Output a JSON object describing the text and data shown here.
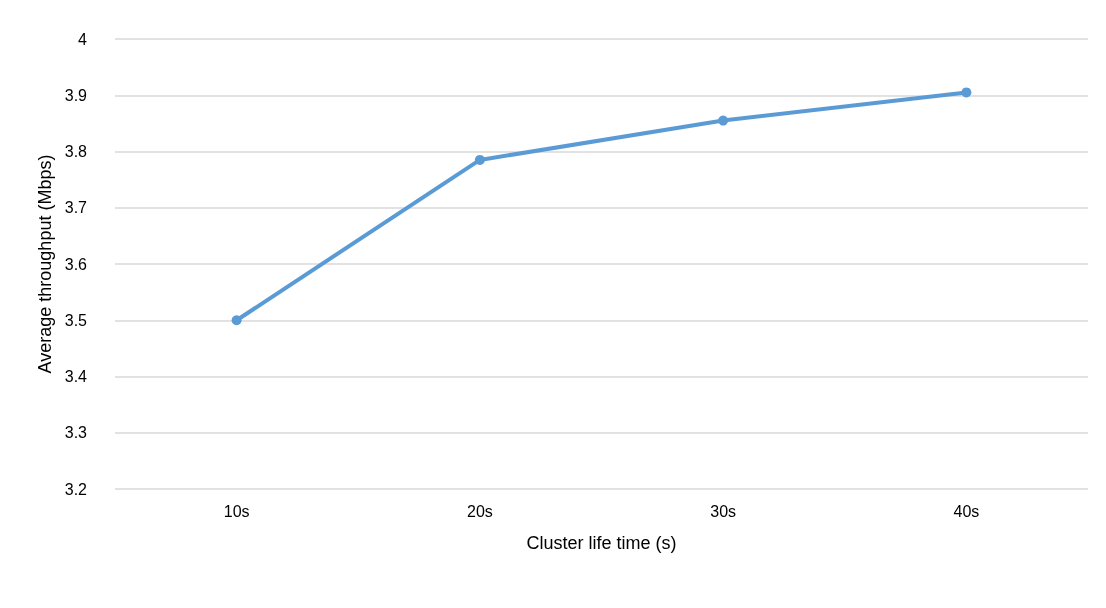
{
  "chart_data": {
    "type": "line",
    "xlabel": "Cluster life time (s)",
    "ylabel": "Average throughput (Mbps)",
    "categories": [
      "10s",
      "20s",
      "30s",
      "40s"
    ],
    "series": [
      {
        "color": "#5b9bd5",
        "values": [
          3.5,
          3.785,
          3.855,
          3.905
        ]
      }
    ],
    "ylim": [
      3.2,
      4
    ],
    "yticks": [
      3.2,
      3.3,
      3.4,
      3.5,
      3.6,
      3.7,
      3.8,
      3.9,
      4
    ],
    "grid": "y",
    "marker": "circle",
    "line_style": "solid"
  }
}
